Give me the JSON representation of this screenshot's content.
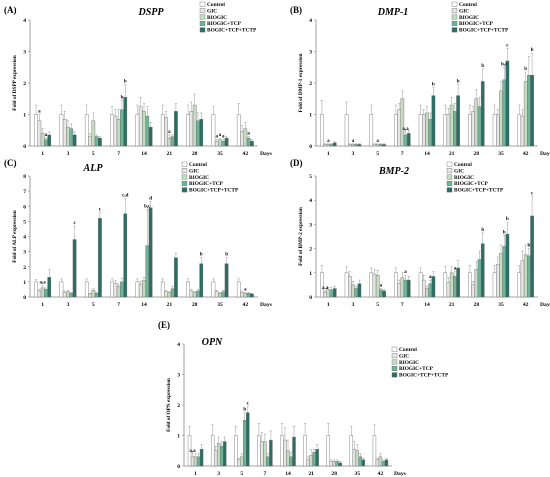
{
  "colors": {
    "Control": "#ffffff",
    "GIC": "#e6e6e6",
    "BIOGIC": "#c6dcc0",
    "BIOGIC+TCP": "#6fb49a",
    "BOGIC+TCP+TCTP": "#2c6e62",
    "axis": "#888888",
    "error": "#999999"
  },
  "chart_data": [
    {
      "panel": "(A)",
      "title": "DSPP",
      "type": "bar",
      "ylabel": "Fold of DSPP expression",
      "xlabel": "Days",
      "categories": [
        "1",
        "3",
        "5",
        "7",
        "14",
        "21",
        "28",
        "35",
        "42"
      ],
      "ylim": [
        0,
        4
      ],
      "yticks": [
        0,
        1,
        2,
        3,
        4
      ],
      "legend": [
        "Control",
        "GIC",
        "BIOGIC",
        "BIOGIC+TCP",
        "BOGIC+TCP+TCTP"
      ],
      "series": [
        {
          "name": "Control",
          "values": [
            1,
            1,
            1,
            1,
            1,
            1,
            1,
            1,
            1
          ],
          "errors": [
            0.3,
            0.3,
            0.3,
            0.25,
            0.3,
            0.3,
            0.3,
            0.25,
            0.35
          ]
        },
        {
          "name": "GIC",
          "values": [
            0.8,
            0.85,
            0.3,
            0.95,
            1.25,
            0.9,
            1.1,
            0.15,
            0.45
          ],
          "errors": [
            0.2,
            0.25,
            0.1,
            0.2,
            0.3,
            0.2,
            0.3,
            0.05,
            0.2
          ]
        },
        {
          "name": "BIOGIC",
          "values": [
            0.4,
            0.6,
            0.8,
            0.85,
            1.1,
            0.25,
            1.3,
            0.2,
            0.55
          ],
          "errors": [
            0.15,
            0.2,
            0.25,
            0.3,
            0.25,
            0.1,
            0.35,
            0.05,
            0.2
          ]
        },
        {
          "name": "BIOGIC+TCP",
          "values": [
            0.2,
            0.55,
            0.3,
            1.15,
            0.95,
            0.3,
            0.8,
            0.15,
            0.25
          ],
          "errors": [
            0.05,
            0.15,
            0.05,
            0.3,
            0.3,
            0.05,
            0.25,
            0.05,
            0.05
          ]
        },
        {
          "name": "BOGIC+TCP+TCTP",
          "values": [
            0.35,
            0.35,
            0.25,
            1.55,
            0.6,
            1.1,
            0.85,
            0.25,
            0.15
          ],
          "errors": [
            0.1,
            0.1,
            0.05,
            0.4,
            0.15,
            0.25,
            0.2,
            0.05,
            0.05
          ]
        }
      ],
      "annotations": [
        {
          "category": "1",
          "series": 1,
          "text": "a"
        },
        {
          "category": "1",
          "series": 3,
          "text": "a"
        },
        {
          "category": "7",
          "series": 3,
          "text": "b"
        },
        {
          "category": "7",
          "series": 4,
          "text": "b"
        },
        {
          "category": "21",
          "series": 2,
          "text": "a"
        },
        {
          "category": "35",
          "series": 1,
          "text": "a"
        },
        {
          "category": "35",
          "series": 2,
          "text": "a"
        },
        {
          "category": "35",
          "series": 3,
          "text": "a"
        },
        {
          "category": "42",
          "series": 3,
          "text": "a"
        }
      ]
    },
    {
      "panel": "(B)",
      "title": "DMP-1",
      "type": "bar",
      "ylabel": "Fold of DMP-1 expression",
      "xlabel": "Days",
      "categories": [
        "1",
        "3",
        "5",
        "7",
        "14",
        "21",
        "28",
        "35",
        "42"
      ],
      "ylim": [
        0,
        4
      ],
      "yticks": [
        0,
        1,
        2,
        3,
        4
      ],
      "legend": [
        "Control",
        "GIC",
        "BIOGIC",
        "BIOGIC+TCP",
        "BOGIC+TCP+TCTP"
      ],
      "series": [
        {
          "name": "Control",
          "values": [
            1,
            1,
            1,
            1,
            1,
            1,
            1,
            1,
            1
          ],
          "errors": [
            0.45,
            0.4,
            0.3,
            0.3,
            0.3,
            0.3,
            0.3,
            0.3,
            0.3
          ]
        },
        {
          "name": "GIC",
          "values": [
            0.05,
            0.05,
            0.05,
            1.15,
            1.0,
            1.0,
            1.1,
            1.0,
            0.95
          ],
          "errors": [
            0.02,
            0.02,
            0.02,
            0.2,
            0.15,
            0.2,
            0.15,
            0.15,
            0.2
          ]
        },
        {
          "name": "BIOGIC",
          "values": [
            0.05,
            0.05,
            0.05,
            1.5,
            1.05,
            1.3,
            1.5,
            1.75,
            2.05
          ],
          "errors": [
            0.02,
            0.02,
            0.02,
            0.25,
            0.2,
            0.25,
            0.3,
            0.3,
            0.3
          ]
        },
        {
          "name": "BIOGIC+TCP",
          "values": [
            0.05,
            0.05,
            0.05,
            0.35,
            0.85,
            1.1,
            1.25,
            2.1,
            2.25
          ],
          "errors": [
            0.02,
            0.02,
            0.02,
            0.1,
            0.2,
            0.25,
            0.3,
            0.4,
            0.6
          ]
        },
        {
          "name": "BOGIC+TCP+TCTP",
          "values": [
            0.1,
            0.05,
            0.05,
            0.4,
            1.6,
            1.6,
            2.05,
            2.7,
            2.25
          ],
          "errors": [
            0.03,
            0.02,
            0.02,
            0.1,
            0.25,
            0.35,
            0.4,
            0.4,
            0.7
          ]
        }
      ],
      "annotations": [
        {
          "category": "1",
          "series": 2,
          "text": "a"
        },
        {
          "category": "3",
          "series": 2,
          "text": "a"
        },
        {
          "category": "5",
          "series": 2,
          "text": "a"
        },
        {
          "category": "7",
          "series": 3,
          "text": "a,a"
        },
        {
          "category": "14",
          "series": 4,
          "text": "b"
        },
        {
          "category": "21",
          "series": 4,
          "text": "b"
        },
        {
          "category": "28",
          "series": 4,
          "text": "b"
        },
        {
          "category": "35",
          "series": 3,
          "text": "b,c"
        },
        {
          "category": "35",
          "series": 4,
          "text": "c"
        },
        {
          "category": "42",
          "series": 2,
          "text": "b"
        },
        {
          "category": "42",
          "series": 4,
          "text": "b"
        }
      ]
    },
    {
      "panel": "(C)",
      "title": "ALP",
      "type": "bar",
      "ylabel": "Fold of ALP expression",
      "xlabel": "Days",
      "categories": [
        "1",
        "3",
        "5",
        "7",
        "14",
        "21",
        "28",
        "35",
        "42"
      ],
      "ylim": [
        0,
        8
      ],
      "yticks": [
        0,
        1,
        2,
        3,
        4,
        5,
        6,
        7,
        8
      ],
      "legend": [
        "Control",
        "GIC",
        "BIOGIC",
        "BIOGIC+TCP",
        "BOGIC+TCP+TCTP"
      ],
      "series": [
        {
          "name": "Control",
          "values": [
            1,
            1,
            1,
            1,
            1,
            1,
            1,
            1,
            1
          ],
          "errors": [
            0.15,
            0.2,
            0.2,
            0.2,
            0.2,
            0.2,
            0.2,
            0.2,
            0.2
          ]
        },
        {
          "name": "GIC",
          "values": [
            0.4,
            0.3,
            0.2,
            0.9,
            0.85,
            0.35,
            0.4,
            0.35,
            0.3
          ],
          "errors": [
            0.1,
            0.1,
            0.05,
            0.2,
            0.2,
            0.1,
            0.1,
            0.1,
            0.1
          ]
        },
        {
          "name": "BIOGIC",
          "values": [
            0.6,
            0.35,
            0.45,
            0.7,
            1.1,
            0.3,
            0.3,
            0.25,
            0.25
          ],
          "errors": [
            0.15,
            0.1,
            0.1,
            0.15,
            0.2,
            0.05,
            0.05,
            0.05,
            0.05
          ]
        },
        {
          "name": "BIOGIC+TCP",
          "values": [
            0.5,
            0.25,
            0.25,
            1.0,
            3.4,
            0.55,
            0.4,
            0.35,
            0.25
          ],
          "errors": [
            0.1,
            0.05,
            0.05,
            0.25,
            2.4,
            0.15,
            0.1,
            0.1,
            0.05
          ]
        },
        {
          "name": "BOGIC+TCP+TCTP",
          "values": [
            1.3,
            3.8,
            5.2,
            5.5,
            5.9,
            2.6,
            2.2,
            2.2,
            0.2
          ],
          "errors": [
            0.5,
            0.9,
            0.4,
            1.0,
            0.4,
            0.3,
            0.4,
            0.4,
            0.05
          ]
        }
      ],
      "annotations": [
        {
          "category": "1",
          "series": 2,
          "text": "a,a"
        },
        {
          "category": "3",
          "series": 4,
          "text": "c"
        },
        {
          "category": "5",
          "series": 4,
          "text": "c"
        },
        {
          "category": "7",
          "series": 4,
          "text": "c,d"
        },
        {
          "category": "14",
          "series": 3,
          "text": "b,c"
        },
        {
          "category": "14",
          "series": 4,
          "text": "d"
        },
        {
          "category": "28",
          "series": 4,
          "text": "b"
        },
        {
          "category": "35",
          "series": 4,
          "text": "b"
        },
        {
          "category": "42",
          "series": 2,
          "text": "a"
        }
      ]
    },
    {
      "panel": "(D)",
      "title": "BMP-2",
      "type": "bar",
      "ylabel": "Fold of BMP-2 expression",
      "xlabel": "Days",
      "categories": [
        "1",
        "3",
        "5",
        "7",
        "14",
        "21",
        "28",
        "35",
        "42"
      ],
      "ylim": [
        0,
        5
      ],
      "yticks": [
        0,
        1,
        2,
        3,
        4,
        5
      ],
      "legend": [
        "Control",
        "GIC",
        "BIOGIC",
        "BIOGIC+TCP",
        "BOGIC+TCP+TCTP"
      ],
      "series": [
        {
          "name": "Control",
          "values": [
            1,
            1,
            1,
            1,
            1,
            1,
            1,
            1,
            1
          ],
          "errors": [
            0.3,
            0.25,
            0.2,
            0.2,
            0.2,
            0.25,
            0.3,
            0.3,
            0.3
          ]
        },
        {
          "name": "GIC",
          "values": [
            0.2,
            0.85,
            0.95,
            0.55,
            0.7,
            0.6,
            0.5,
            1.35,
            1.5
          ],
          "errors": [
            0.05,
            0.2,
            0.2,
            0.15,
            0.2,
            0.2,
            0.15,
            0.3,
            0.4
          ]
        },
        {
          "name": "BIOGIC",
          "values": [
            0.3,
            0.5,
            0.9,
            0.8,
            0.35,
            1.0,
            1.15,
            1.8,
            1.75
          ],
          "errors": [
            0.1,
            0.15,
            0.2,
            0.2,
            0.1,
            0.25,
            0.3,
            0.35,
            0.4
          ]
        },
        {
          "name": "BIOGIC+TCP",
          "values": [
            0.3,
            0.35,
            0.3,
            0.7,
            0.55,
            0.85,
            1.55,
            2.1,
            1.7
          ],
          "errors": [
            0.1,
            0.1,
            0.05,
            0.2,
            0.15,
            0.2,
            0.35,
            0.45,
            0.3
          ]
        },
        {
          "name": "BOGIC+TCP+TCTP",
          "values": [
            0.35,
            0.55,
            0.25,
            0.7,
            0.85,
            1.2,
            2.2,
            2.6,
            3.35
          ],
          "errors": [
            0.1,
            0.15,
            0.05,
            0.15,
            0.2,
            0.3,
            0.45,
            0.5,
            0.8
          ]
        }
      ],
      "annotations": [
        {
          "category": "1",
          "series": 1,
          "text": "a,a"
        },
        {
          "category": "5",
          "series": 3,
          "text": "a"
        },
        {
          "category": "7",
          "series": 3,
          "text": "a"
        },
        {
          "category": "14",
          "series": 3,
          "text": "a"
        },
        {
          "category": "21",
          "series": 3,
          "text": "a"
        },
        {
          "category": "28",
          "series": 4,
          "text": "b"
        },
        {
          "category": "35",
          "series": 3,
          "text": "b"
        },
        {
          "category": "35",
          "series": 4,
          "text": "b"
        },
        {
          "category": "42",
          "series": 3,
          "text": "b"
        },
        {
          "category": "42",
          "series": 4,
          "text": "c"
        }
      ]
    },
    {
      "panel": "(E)",
      "title": "OPN",
      "type": "bar",
      "ylabel": "Fold of OPN expression",
      "xlabel": "Days",
      "categories": [
        "1",
        "3",
        "5",
        "7",
        "14",
        "21",
        "28",
        "35",
        "42"
      ],
      "ylim": [
        0,
        4
      ],
      "yticks": [
        0,
        1,
        2,
        3,
        4
      ],
      "legend": [
        "Control",
        "GIC",
        "BIOGIC",
        "BIOGIC+TCP",
        "BOGIC+TCP+TCTP"
      ],
      "series": [
        {
          "name": "Control",
          "values": [
            1,
            1,
            1,
            1,
            1,
            1,
            1,
            1,
            1
          ],
          "errors": [
            0.3,
            0.35,
            0.3,
            0.4,
            0.4,
            0.4,
            0.4,
            0.3,
            0.35
          ]
        },
        {
          "name": "GIC",
          "values": [
            0.3,
            0.5,
            0.2,
            0.8,
            0.85,
            0.2,
            0.15,
            0.55,
            0.2
          ],
          "errors": [
            0.1,
            0.15,
            0.05,
            0.3,
            0.4,
            0.1,
            0.05,
            0.25,
            0.05
          ]
        },
        {
          "name": "BIOGIC",
          "values": [
            0.3,
            0.75,
            0.3,
            0.8,
            0.5,
            0.35,
            0.15,
            0.5,
            0.3
          ],
          "errors": [
            0.1,
            0.2,
            0.1,
            0.25,
            0.35,
            0.2,
            0.05,
            0.2,
            0.1
          ]
        },
        {
          "name": "BIOGIC+TCP",
          "values": [
            0.3,
            0.65,
            1.5,
            0.3,
            0.3,
            0.45,
            0.15,
            0.3,
            0.15
          ],
          "errors": [
            0.1,
            0.15,
            0.25,
            0.1,
            0.15,
            0.1,
            0.05,
            0.1,
            0.05
          ]
        },
        {
          "name": "BOGIC+TCP+TCTP",
          "values": [
            0.55,
            0.8,
            1.75,
            0.85,
            0.95,
            0.55,
            0.1,
            0.2,
            0.2
          ],
          "errors": [
            0.15,
            0.15,
            0.2,
            0.3,
            0.35,
            0.15,
            0.05,
            0.05,
            0.05
          ]
        }
      ],
      "annotations": [
        {
          "category": "1",
          "series": 1,
          "text": "a,a"
        },
        {
          "category": "5",
          "series": 3,
          "text": "b"
        },
        {
          "category": "5",
          "series": 4,
          "text": "c"
        }
      ]
    }
  ]
}
